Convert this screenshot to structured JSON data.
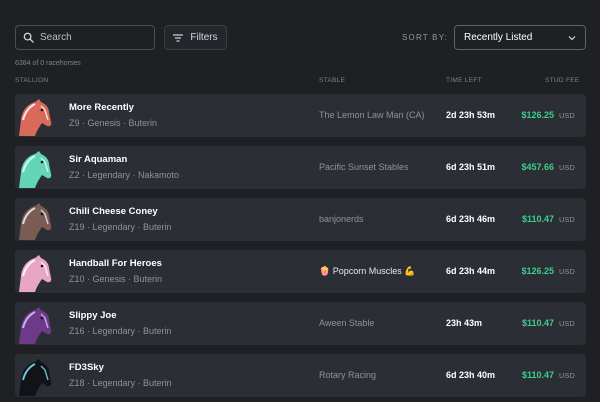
{
  "search": {
    "placeholder": "Search",
    "value": ""
  },
  "filters_label": "Filters",
  "sort": {
    "label": "SORT BY:",
    "selected": "Recently Listed"
  },
  "count_text": "6384 of 0 racehorses",
  "columns": {
    "stallion": "STALLION",
    "stable": "STABLE",
    "time_left": "TIME LEFT",
    "stud_fee": "STUD FEE"
  },
  "colors": {
    "fee_green": "#3fcc8d",
    "row_bg": "#2b2e34",
    "page_bg": "#1e2024"
  },
  "horses": [
    {
      "name": "More Recently",
      "details": "Z9 · Genesis · Buterin",
      "stable": "The Lemon Law Man (CA)",
      "time_left": "2d 23h 53m",
      "fee": "$126.25",
      "currency": "USD",
      "color": "#d96a5b",
      "mane": "#ffffff"
    },
    {
      "name": "Sir Aquaman",
      "details": "Z2 · Legendary · Nakamoto",
      "stable": "Pacific Sunset Stables",
      "time_left": "6d 23h 51m",
      "fee": "$457.66",
      "currency": "USD",
      "color": "#63d6b8",
      "mane": "#e8fff8"
    },
    {
      "name": "Chili Cheese Coney",
      "details": "Z19 · Legendary · Buterin",
      "stable": "banjonerds",
      "time_left": "6d 23h 46m",
      "fee": "$110.47",
      "currency": "USD",
      "color": "#7a5c55",
      "mane": "#f2f2f2"
    },
    {
      "name": "Handball For Heroes",
      "details": "Z10 · Genesis · Buterin",
      "stable": "🍿 Popcorn Muscles 💪",
      "time_left": "6d 23h 44m",
      "fee": "$126.25",
      "currency": "USD",
      "color": "#e7a6c6",
      "mane": "#ffffff"
    },
    {
      "name": "Slippy Joe",
      "details": "Z16 · Legendary · Buterin",
      "stable": "Aween Stable",
      "time_left": "23h 43m",
      "fee": "$110.47",
      "currency": "USD",
      "color": "#6d3a8a",
      "mane": "#d9c8ff"
    },
    {
      "name": "FD3Sky",
      "details": "Z18 · Legendary · Buterin",
      "stable": "Rotary Racing",
      "time_left": "6d 23h 40m",
      "fee": "$110.47",
      "currency": "USD",
      "color": "#111318",
      "mane": "#7fe9ff"
    }
  ]
}
